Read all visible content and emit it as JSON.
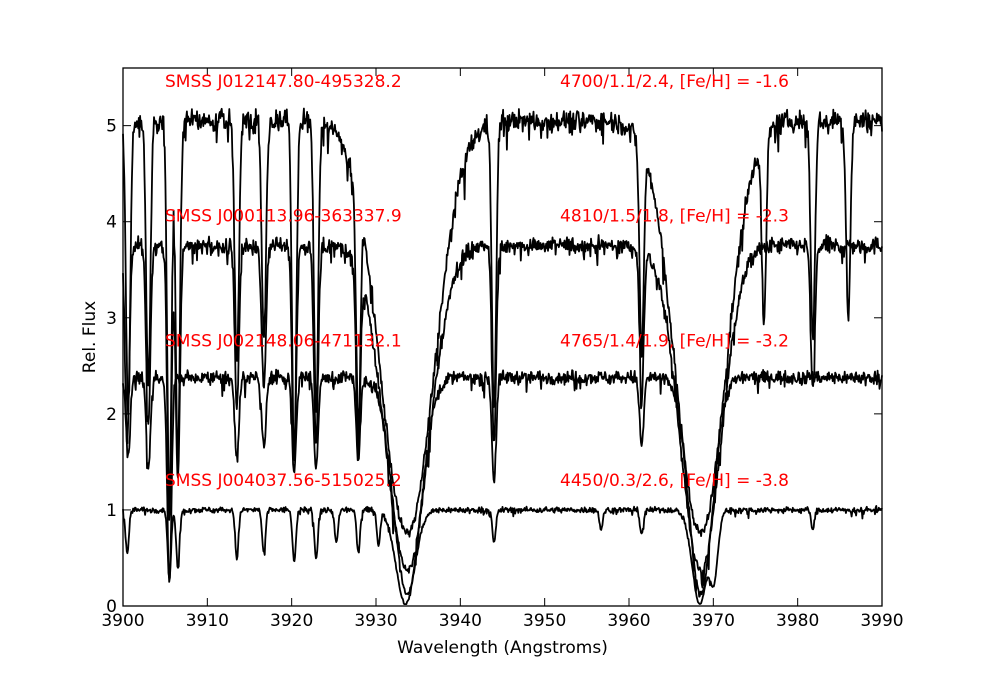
{
  "chart_data": {
    "type": "line",
    "title": "",
    "xlabel": "Wavelength (Angstroms)",
    "ylabel": "Rel. Flux",
    "xlim": [
      3900,
      3990
    ],
    "ylim": [
      0,
      5.6
    ],
    "xticks": [
      3900,
      3910,
      3920,
      3930,
      3940,
      3950,
      3960,
      3970,
      3980,
      3990
    ],
    "yticks": [
      0,
      1,
      2,
      3,
      4,
      5
    ],
    "grid": false,
    "label_color": "#ff0000",
    "line_color": "#000000",
    "series": [
      {
        "name": "SMSS J012147.80-495328.2",
        "params": "4700/1.1/2.4, [Fe/H] = -1.6",
        "continuum": 5.05,
        "noise": 0.11,
        "label_y": 5.4,
        "ca_lines": [
          {
            "center": 3933.7,
            "width": 3.2,
            "depth": 0.85
          },
          {
            "center": 3968.5,
            "width": 3.0,
            "depth": 0.85
          }
        ],
        "metal_lines": [
          {
            "center": 3900.6,
            "width": 0.25,
            "depth": 0.6
          },
          {
            "center": 3903.0,
            "width": 0.25,
            "depth": 0.55
          },
          {
            "center": 3905.5,
            "width": 0.25,
            "depth": 0.8
          },
          {
            "center": 3906.5,
            "width": 0.25,
            "depth": 0.7
          },
          {
            "center": 3913.5,
            "width": 0.25,
            "depth": 0.5
          },
          {
            "center": 3916.7,
            "width": 0.25,
            "depth": 0.45
          },
          {
            "center": 3920.3,
            "width": 0.25,
            "depth": 0.7
          },
          {
            "center": 3922.9,
            "width": 0.25,
            "depth": 0.6
          },
          {
            "center": 3927.9,
            "width": 0.25,
            "depth": 0.55
          },
          {
            "center": 3944.0,
            "width": 0.25,
            "depth": 0.6
          },
          {
            "center": 3961.5,
            "width": 0.25,
            "depth": 0.45
          },
          {
            "center": 3976.0,
            "width": 0.25,
            "depth": 0.4
          },
          {
            "center": 3981.8,
            "width": 0.25,
            "depth": 0.45
          },
          {
            "center": 3986.0,
            "width": 0.25,
            "depth": 0.4
          }
        ]
      },
      {
        "name": "SMSS J000113.96-363337.9",
        "params": "4810/1.5/1.8, [Fe/H] = -2.3",
        "continuum": 3.75,
        "noise": 0.09,
        "label_y": 4.0,
        "ca_lines": [
          {
            "center": 3933.7,
            "width": 2.6,
            "depth": 0.9
          },
          {
            "center": 3968.5,
            "width": 2.4,
            "depth": 0.9
          }
        ],
        "metal_lines": [
          {
            "center": 3900.5,
            "width": 0.25,
            "depth": 0.55
          },
          {
            "center": 3903.0,
            "width": 0.25,
            "depth": 0.5
          },
          {
            "center": 3905.5,
            "width": 0.25,
            "depth": 0.75
          },
          {
            "center": 3906.5,
            "width": 0.25,
            "depth": 0.65
          },
          {
            "center": 3913.5,
            "width": 0.25,
            "depth": 0.45
          },
          {
            "center": 3916.7,
            "width": 0.25,
            "depth": 0.4
          },
          {
            "center": 3920.3,
            "width": 0.25,
            "depth": 0.6
          },
          {
            "center": 3922.9,
            "width": 0.25,
            "depth": 0.55
          },
          {
            "center": 3927.9,
            "width": 0.25,
            "depth": 0.5
          },
          {
            "center": 3944.0,
            "width": 0.25,
            "depth": 0.55
          },
          {
            "center": 3961.5,
            "width": 0.25,
            "depth": 0.4
          },
          {
            "center": 3981.8,
            "width": 0.25,
            "depth": 0.4
          }
        ]
      },
      {
        "name": "SMSS J002148.06-471132.1",
        "params": "4765/1.4/1.9, [Fe/H] = -3.2",
        "continuum": 2.38,
        "noise": 0.07,
        "label_y": 2.7,
        "ca_lines": [
          {
            "center": 3933.7,
            "width": 1.6,
            "depth": 0.95
          },
          {
            "center": 3968.5,
            "width": 1.4,
            "depth": 0.95
          }
        ],
        "metal_lines": [
          {
            "center": 3900.6,
            "width": 0.25,
            "depth": 0.35
          },
          {
            "center": 3903.0,
            "width": 0.25,
            "depth": 0.4
          },
          {
            "center": 3905.5,
            "width": 0.25,
            "depth": 0.9
          },
          {
            "center": 3913.5,
            "width": 0.25,
            "depth": 0.35
          },
          {
            "center": 3916.7,
            "width": 0.25,
            "depth": 0.3
          },
          {
            "center": 3920.3,
            "width": 0.25,
            "depth": 0.4
          },
          {
            "center": 3922.9,
            "width": 0.25,
            "depth": 0.4
          },
          {
            "center": 3927.9,
            "width": 0.25,
            "depth": 0.35
          },
          {
            "center": 3944.0,
            "width": 0.25,
            "depth": 0.45
          },
          {
            "center": 3961.5,
            "width": 0.25,
            "depth": 0.3
          }
        ]
      },
      {
        "name": "SMSS J004037.56-515025.2",
        "params": "4450/0.3/2.6, [Fe/H] = -3.8",
        "continuum": 1.0,
        "noise": 0.03,
        "label_y": 1.25,
        "ca_lines": [
          {
            "center": 3933.5,
            "width": 1.1,
            "depth": 0.98
          },
          {
            "center": 3968.4,
            "width": 0.9,
            "depth": 0.98
          },
          {
            "center": 3970.0,
            "width": 0.5,
            "depth": 0.75
          }
        ],
        "metal_lines": [
          {
            "center": 3900.5,
            "width": 0.2,
            "depth": 0.45
          },
          {
            "center": 3905.5,
            "width": 0.2,
            "depth": 0.72
          },
          {
            "center": 3906.5,
            "width": 0.2,
            "depth": 0.6
          },
          {
            "center": 3913.5,
            "width": 0.2,
            "depth": 0.5
          },
          {
            "center": 3916.7,
            "width": 0.2,
            "depth": 0.45
          },
          {
            "center": 3920.3,
            "width": 0.2,
            "depth": 0.55
          },
          {
            "center": 3922.9,
            "width": 0.2,
            "depth": 0.5
          },
          {
            "center": 3925.3,
            "width": 0.2,
            "depth": 0.35
          },
          {
            "center": 3927.9,
            "width": 0.2,
            "depth": 0.45
          },
          {
            "center": 3930.3,
            "width": 0.2,
            "depth": 0.35
          },
          {
            "center": 3944.0,
            "width": 0.2,
            "depth": 0.35
          },
          {
            "center": 3956.7,
            "width": 0.2,
            "depth": 0.2
          },
          {
            "center": 3961.5,
            "width": 0.2,
            "depth": 0.25
          },
          {
            "center": 3981.8,
            "width": 0.2,
            "depth": 0.2
          }
        ]
      }
    ]
  }
}
